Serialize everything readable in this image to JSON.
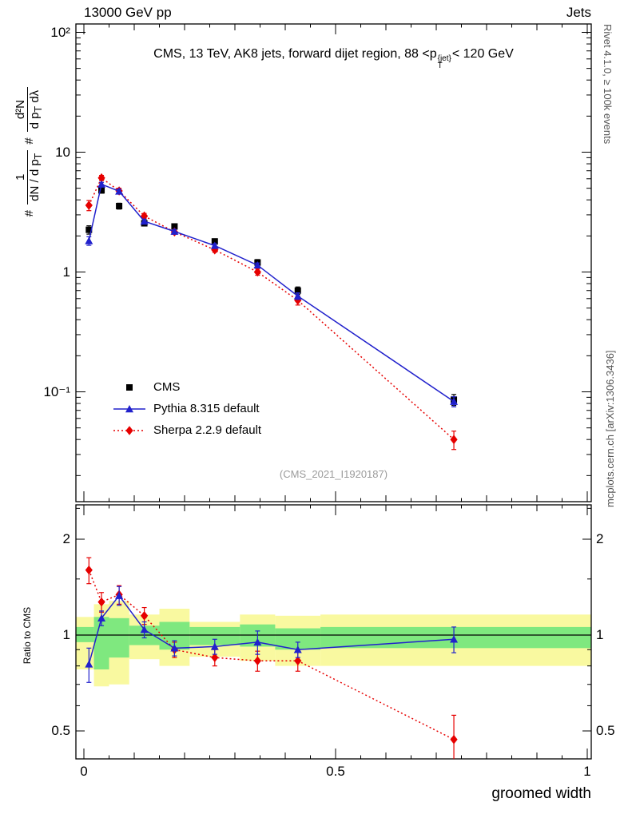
{
  "header": {
    "left": "13000 GeV pp",
    "right": "Jets"
  },
  "title": {
    "part1": "CMS, 13 TeV, AK8 jets, forward dijet region, 88 <p",
    "sup": "{jet}",
    "sub": "T",
    "part2": "< 120 GeV"
  },
  "right_margin": {
    "top": "Rivet 4.1.0, ≥ 100k events",
    "bottom": "mcplots.cern.ch [arXiv:1306.3436]"
  },
  "watermark": "(CMS_2021_I1920187)",
  "ylabel": {
    "hash1": "#",
    "frac1": {
      "num": "1",
      "den_main": "dN / d p",
      "den_sub": "T"
    },
    "hash2": "#",
    "frac2": {
      "num": "d²N",
      "den_main": "d p",
      "den_sub": "T",
      "den_tail": " dλ"
    }
  },
  "axes": {
    "xlabel": "groomed width",
    "ratio_ylabel": "Ratio to CMS",
    "x_ticks": [
      {
        "label": "0",
        "v": 0
      },
      {
        "label": "0.5",
        "v": 0.5
      },
      {
        "label": "1",
        "v": 1
      }
    ],
    "top_y_ticks": [
      {
        "label": "10²",
        "v": 100
      },
      {
        "label": "10",
        "v": 10
      },
      {
        "label": "1",
        "v": 1
      },
      {
        "label": "10⁻¹",
        "v": 0.1
      }
    ],
    "ratio_y_ticks": [
      {
        "label": "2",
        "v": 2
      },
      {
        "label": "1",
        "v": 1
      },
      {
        "label": "0.5",
        "v": 0.5
      }
    ]
  },
  "legend": {
    "items": [
      {
        "label": "CMS",
        "marker": "square",
        "color": "#000000",
        "line": "none"
      },
      {
        "label": "Pythia 8.315 default",
        "marker": "triangle",
        "color": "#2121cc",
        "line": "solid"
      },
      {
        "label": "Sherpa 2.2.9 default",
        "marker": "diamond",
        "color": "#e60000",
        "line": "dotted"
      }
    ]
  },
  "chart_data": {
    "type": "line",
    "title": "CMS, 13 TeV, AK8 jets, forward dijet region, 88 < pT{jet} < 120 GeV",
    "xlabel": "groomed width",
    "ylabel": "# 1/(dN/dpT) d²N/(dpT dλ)",
    "legend_position": "middle-left",
    "colors": {
      "yellow_band": "#f9f9a0",
      "green_band": "#7fe87f",
      "cms": "#000000",
      "pythia": "#2121cc",
      "sherpa": "#e60000"
    },
    "top_panel": {
      "yscale": "log",
      "ylim": [
        0.012,
        117
      ],
      "xlim": [
        -0.016,
        1.008
      ],
      "x": [
        0.01,
        0.035,
        0.07,
        0.12,
        0.18,
        0.26,
        0.345,
        0.425,
        0.735
      ],
      "series": [
        {
          "name": "CMS",
          "marker": "square",
          "color": "#000000",
          "line": "none",
          "values": [
            2.25,
            4.8,
            3.55,
            2.55,
            2.4,
            1.8,
            1.2,
            0.7,
            0.086
          ],
          "errors": [
            0.18,
            0.25,
            0.2,
            0.13,
            0.11,
            0.09,
            0.07,
            0.05,
            0.009
          ]
        },
        {
          "name": "Sherpa 2.2.9 default",
          "marker": "diamond",
          "color": "#e60000",
          "line": "dotted",
          "values": [
            3.6,
            6.1,
            4.75,
            2.93,
            2.16,
            1.53,
            1.0,
            0.58,
            0.04
          ],
          "errors": [
            0.35,
            0.3,
            0.25,
            0.15,
            0.1,
            0.07,
            0.06,
            0.05,
            0.007
          ]
        },
        {
          "name": "Pythia 8.315 default",
          "marker": "triangle",
          "color": "#2121cc",
          "line": "solid",
          "values": [
            1.82,
            5.4,
            4.72,
            2.65,
            2.18,
            1.66,
            1.14,
            0.63,
            0.083
          ],
          "errors": [
            0.15,
            0.2,
            0.18,
            0.1,
            0.08,
            0.06,
            0.05,
            0.04,
            0.008
          ]
        }
      ]
    },
    "ratio_panel": {
      "yscale": "log",
      "ylim": [
        0.41,
        2.56
      ],
      "ref": 1.0,
      "ylabel": "Ratio to CMS",
      "x": [
        0.01,
        0.035,
        0.07,
        0.12,
        0.18,
        0.26,
        0.345,
        0.425,
        0.735
      ],
      "series": [
        {
          "name": "Sherpa 2.2.9 default",
          "marker": "diamond",
          "color": "#e60000",
          "line": "dotted",
          "values": [
            1.6,
            1.27,
            1.34,
            1.15,
            0.9,
            0.85,
            0.83,
            0.83,
            0.47
          ],
          "errors": [
            0.15,
            0.09,
            0.09,
            0.07,
            0.05,
            0.05,
            0.06,
            0.06,
            0.09
          ]
        },
        {
          "name": "Pythia 8.315 default",
          "marker": "triangle",
          "color": "#2121cc",
          "line": "solid",
          "values": [
            0.81,
            1.13,
            1.33,
            1.04,
            0.91,
            0.92,
            0.95,
            0.9,
            0.97
          ],
          "errors": [
            0.1,
            0.06,
            0.09,
            0.06,
            0.05,
            0.05,
            0.08,
            0.05,
            0.09
          ]
        }
      ],
      "bands": {
        "edges": [
          0,
          0.02,
          0.05,
          0.09,
          0.15,
          0.21,
          0.31,
          0.38,
          0.47,
          1.0
        ],
        "yellow_lo": [
          0.78,
          0.69,
          0.7,
          0.84,
          0.8,
          0.855,
          0.83,
          0.8,
          0.8
        ],
        "yellow_hi": [
          1.14,
          1.25,
          1.28,
          1.16,
          1.21,
          1.1,
          1.16,
          1.15,
          1.16
        ],
        "green_lo": [
          0.95,
          0.78,
          0.85,
          0.93,
          0.9,
          0.93,
          0.92,
          0.9,
          0.91
        ],
        "green_hi": [
          1.06,
          1.14,
          1.13,
          1.07,
          1.1,
          1.06,
          1.08,
          1.05,
          1.06
        ]
      }
    }
  }
}
